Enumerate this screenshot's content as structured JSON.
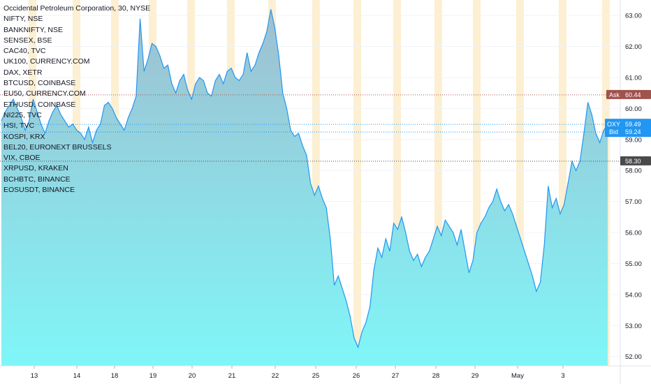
{
  "header": {
    "title": "Occidental Petroleum Corporation, 30, NYSE",
    "symbols": [
      "NIFTY, NSE",
      "BANKNIFTY, NSE",
      "SENSEX, BSE",
      "CAC40, TVC",
      "UK100, CURRENCY.COM",
      "DAX, XETR",
      "BTCUSD, COINBASE",
      "EU50, CURRENCY.COM",
      "ETHUSD, COINBASE",
      "NI225, TVC",
      "HSI, TVC",
      "KOSPI, KRX",
      "BEL20, EURONEXT BRUSSELS",
      "VIX, CBOE",
      "XRPUSD, KRAKEN",
      "BCHBTC, BINANCE",
      "EOSUSDT, BINANCE"
    ]
  },
  "colors": {
    "line": "#2196f3",
    "fill_top": "#9fbfd0",
    "fill_bottom": "#7ff6f8",
    "session_band": "#fdefd1",
    "ask": "#a0524d",
    "bid": "#2196f3",
    "last": "#4a4a4a"
  },
  "price_tags": [
    {
      "label": "Ask",
      "value": "60.44",
      "color": "#a0524d"
    },
    {
      "label": "OXY",
      "value": "59.49",
      "color": "#2196f3"
    },
    {
      "label": "Bid",
      "value": "59.24",
      "color": "#2196f3"
    },
    {
      "label": "",
      "value": "58.30",
      "color": "#4a4a4a"
    }
  ],
  "chart_data": {
    "type": "area",
    "title": "Occidental Petroleum Corporation, 30, NYSE",
    "ylim": [
      51.7,
      63.5
    ],
    "y_ticks": [
      "52.00",
      "53.00",
      "54.00",
      "55.00",
      "56.00",
      "57.00",
      "58.00",
      "59.00",
      "60.00",
      "61.00",
      "62.00",
      "63.00"
    ],
    "x_tick_labels": [
      "13",
      "14",
      "18",
      "19",
      "20",
      "21",
      "22",
      "25",
      "26",
      "27",
      "28",
      "29",
      "May",
      "3"
    ],
    "grid": true,
    "legend": "top-left",
    "series": [
      {
        "values": [
          59.6,
          59.9,
          60.1,
          60.3,
          60.0,
          59.7,
          59.3,
          59.6,
          60.3,
          59.9,
          59.5,
          59.2,
          59.6,
          59.9,
          60.1,
          59.8,
          59.6,
          59.4,
          59.5,
          59.3,
          59.2,
          59.0,
          59.4,
          58.9,
          59.3,
          59.5,
          60.1,
          60.2,
          60.0,
          59.7,
          59.5,
          59.3,
          59.7,
          60.0,
          60.4,
          62.9,
          61.2,
          61.6,
          62.1,
          62.0,
          61.7,
          61.3,
          61.4,
          60.8,
          60.5,
          60.9,
          61.1,
          60.6,
          60.3,
          60.8,
          61.0,
          60.9,
          60.5,
          60.4,
          60.9,
          61.1,
          60.8,
          61.2,
          61.3,
          61.0,
          60.9,
          61.1,
          61.8,
          61.2,
          61.4,
          61.8,
          62.1,
          62.5,
          63.2,
          62.6,
          61.7,
          60.5,
          60.0,
          59.3,
          59.1,
          59.2,
          58.8,
          58.5,
          57.6,
          57.2,
          57.5,
          57.1,
          56.8,
          55.8,
          54.3,
          54.6,
          54.2,
          53.8,
          53.3,
          52.6,
          52.3,
          52.8,
          53.1,
          53.6,
          54.8,
          55.5,
          55.2,
          55.8,
          55.4,
          56.3,
          56.1,
          56.5,
          56.0,
          55.4,
          55.1,
          55.3,
          54.9,
          55.2,
          55.4,
          55.8,
          56.2,
          55.9,
          56.4,
          56.2,
          56.0,
          55.6,
          56.1,
          55.4,
          54.7,
          55.1,
          56.0,
          56.3,
          56.5,
          56.8,
          57.0,
          57.4,
          57.0,
          56.7,
          56.9,
          56.6,
          56.2,
          55.8,
          55.4,
          55.0,
          54.6,
          54.1,
          54.4,
          55.6,
          57.5,
          56.8,
          57.1,
          56.6,
          56.9,
          57.6,
          58.3,
          58.0,
          58.3,
          59.2,
          60.2,
          59.8,
          59.2,
          58.9,
          59.3,
          59.49
        ]
      }
    ]
  }
}
